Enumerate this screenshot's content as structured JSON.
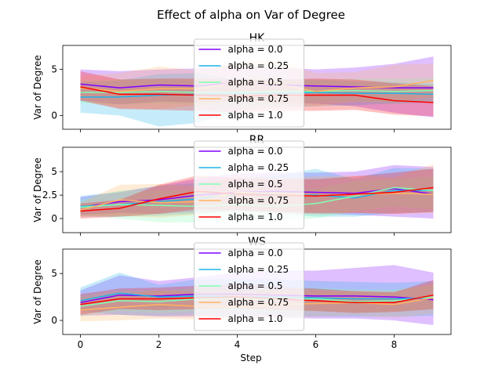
{
  "suptitle": "Effect of alpha on  Var of Degree",
  "shared_xlabel": "Step",
  "colors": {
    "alpha = 0.0": "#8000ff",
    "alpha = 0.25": "#1cb3e8",
    "alpha = 0.5": "#80ffb4",
    "alpha = 0.75": "#ffb360",
    "alpha = 1.0": "#ff0000"
  },
  "chart_data": [
    {
      "type": "line",
      "title": "HK",
      "ylabel": "Var of Degree",
      "xlabel": "",
      "xlim": [
        -0.45,
        9.45
      ],
      "ylim": [
        -1.5,
        7.6
      ],
      "xticks": [
        0,
        2,
        4,
        6,
        8
      ],
      "yticks": [
        0,
        5
      ],
      "show_xticklabels": false,
      "grid": false,
      "legend_position": "top-center",
      "x": [
        0,
        1,
        2,
        3,
        4,
        5,
        6,
        7,
        8,
        9
      ],
      "series": [
        {
          "name": "alpha = 0.0",
          "values": [
            3.4,
            3.0,
            3.3,
            3.2,
            3.6,
            3.3,
            3.2,
            3.1,
            3.0,
            3.0
          ],
          "lower": [
            1.6,
            1.2,
            1.5,
            1.4,
            1.6,
            1.4,
            1.3,
            1.0,
            0.3,
            -0.2
          ],
          "upper": [
            5.0,
            4.8,
            5.0,
            5.1,
            5.4,
            5.2,
            5.0,
            5.2,
            5.6,
            6.4
          ]
        },
        {
          "name": "alpha = 0.25",
          "values": [
            2.0,
            2.0,
            2.2,
            2.3,
            2.4,
            2.4,
            2.5,
            2.4,
            2.4,
            2.3
          ],
          "lower": [
            0.3,
            0.0,
            -1.2,
            -0.8,
            0.5,
            0.8,
            1.0,
            1.1,
            1.3,
            1.4
          ],
          "upper": [
            3.6,
            3.8,
            4.5,
            4.6,
            3.9,
            3.9,
            3.9,
            3.7,
            3.6,
            3.4
          ]
        },
        {
          "name": "alpha = 0.5",
          "values": [
            2.5,
            2.5,
            2.6,
            2.5,
            2.5,
            2.6,
            2.6,
            2.7,
            2.6,
            2.7
          ],
          "lower": [
            1.3,
            1.2,
            1.3,
            1.2,
            1.0,
            1.2,
            1.4,
            1.5,
            1.3,
            1.5
          ],
          "upper": [
            3.8,
            3.9,
            4.0,
            3.9,
            4.0,
            4.0,
            3.9,
            4.0,
            4.0,
            4.1
          ]
        },
        {
          "name": "alpha = 0.75",
          "values": [
            3.0,
            2.6,
            2.9,
            2.9,
            3.6,
            3.4,
            2.6,
            3.0,
            3.1,
            3.8
          ],
          "lower": [
            1.7,
            0.8,
            0.7,
            1.1,
            1.6,
            1.3,
            1.0,
            1.5,
            1.5,
            2.0
          ],
          "upper": [
            4.3,
            4.6,
            5.3,
            4.9,
            5.8,
            6.0,
            4.6,
            4.7,
            5.5,
            5.6
          ]
        },
        {
          "name": "alpha = 1.0",
          "values": [
            3.1,
            2.3,
            2.3,
            2.2,
            2.1,
            2.2,
            2.2,
            2.2,
            1.6,
            1.4
          ],
          "lower": [
            1.6,
            0.7,
            0.6,
            0.5,
            0.3,
            0.5,
            0.5,
            0.6,
            0.1,
            -0.1
          ],
          "upper": [
            4.8,
            3.9,
            4.0,
            4.0,
            3.9,
            3.9,
            4.0,
            3.9,
            3.5,
            3.2
          ]
        }
      ]
    },
    {
      "type": "line",
      "title": "RR",
      "ylabel": "Var of Degree",
      "xlabel": "",
      "xlim": [
        -0.45,
        9.45
      ],
      "ylim": [
        -1.5,
        7.6
      ],
      "xticks": [
        0,
        2,
        4,
        6,
        8
      ],
      "yticks": [
        0,
        2.5,
        5
      ],
      "show_xticklabels": false,
      "grid": false,
      "legend_position": "top-center",
      "x": [
        0,
        1,
        2,
        3,
        4,
        5,
        6,
        7,
        8,
        9
      ],
      "series": [
        {
          "name": "alpha = 0.0",
          "values": [
            1.2,
            1.8,
            2.0,
            2.5,
            2.8,
            2.9,
            2.8,
            2.7,
            3.2,
            2.6
          ],
          "lower": [
            0.4,
            0.6,
            0.5,
            0.7,
            0.8,
            0.7,
            0.5,
            0.4,
            0.2,
            0.0
          ],
          "upper": [
            2.3,
            2.8,
            3.5,
            4.3,
            4.8,
            4.9,
            4.9,
            5.0,
            5.7,
            5.5
          ]
        },
        {
          "name": "alpha = 0.25",
          "values": [
            1.3,
            1.5,
            1.8,
            2.1,
            2.6,
            2.6,
            2.5,
            2.2,
            3.0,
            3.0
          ],
          "lower": [
            0.2,
            0.2,
            0.3,
            0.5,
            0.8,
            0.6,
            0.2,
            0.2,
            0.6,
            0.7
          ],
          "upper": [
            2.4,
            2.9,
            3.5,
            3.8,
            4.3,
            4.6,
            5.3,
            4.2,
            5.4,
            5.3
          ]
        },
        {
          "name": "alpha = 0.5",
          "values": [
            1.2,
            1.5,
            1.4,
            1.3,
            1.5,
            1.3,
            1.6,
            2.4,
            3.3,
            3.0
          ],
          "lower": [
            0.4,
            0.0,
            -0.4,
            -0.4,
            -0.2,
            -0.2,
            0.0,
            0.8,
            1.3,
            1.0
          ],
          "upper": [
            2.0,
            3.0,
            3.0,
            3.0,
            3.1,
            3.0,
            3.2,
            4.0,
            4.2,
            4.5
          ]
        },
        {
          "name": "alpha = 0.75",
          "values": [
            0.9,
            2.0,
            1.7,
            1.8,
            2.8,
            2.7,
            2.4,
            2.6,
            2.7,
            2.6
          ],
          "lower": [
            0.2,
            0.3,
            0.1,
            0.4,
            0.9,
            0.6,
            0.4,
            0.6,
            0.5,
            0.6
          ],
          "upper": [
            1.7,
            3.6,
            3.7,
            3.4,
            4.7,
            4.3,
            4.5,
            4.6,
            4.4,
            5.8
          ]
        },
        {
          "name": "alpha = 1.0",
          "values": [
            0.8,
            1.1,
            2.1,
            2.9,
            2.6,
            2.5,
            2.4,
            2.6,
            2.8,
            3.3
          ],
          "lower": [
            0.0,
            0.2,
            0.5,
            1.0,
            0.9,
            0.7,
            0.6,
            0.6,
            0.5,
            0.7
          ],
          "upper": [
            1.6,
            2.0,
            3.6,
            4.6,
            4.3,
            4.2,
            4.2,
            4.5,
            4.9,
            5.3
          ]
        }
      ]
    },
    {
      "type": "line",
      "title": "WS",
      "ylabel": "Var of Degree",
      "xlabel": "Step",
      "xlim": [
        -0.45,
        9.45
      ],
      "ylim": [
        -1.5,
        7.6
      ],
      "xticks": [
        0,
        2,
        4,
        6,
        8
      ],
      "yticks": [
        0,
        5
      ],
      "show_xticklabels": true,
      "grid": false,
      "legend_position": "top-center",
      "x": [
        0,
        1,
        2,
        3,
        4,
        5,
        6,
        7,
        8,
        9
      ],
      "series": [
        {
          "name": "alpha = 0.0",
          "values": [
            1.9,
            2.7,
            2.6,
            2.8,
            2.8,
            2.7,
            2.6,
            2.6,
            2.5,
            2.2
          ],
          "lower": [
            0.5,
            0.6,
            0.4,
            0.4,
            0.3,
            0.3,
            0.2,
            0.2,
            0.0,
            -0.5
          ],
          "upper": [
            3.2,
            4.8,
            4.2,
            4.6,
            5.1,
            5.3,
            5.3,
            5.6,
            5.9,
            5.1
          ]
        },
        {
          "name": "alpha = 0.25",
          "values": [
            2.1,
            2.9,
            2.5,
            2.6,
            2.5,
            2.5,
            2.4,
            2.3,
            2.3,
            2.4
          ],
          "lower": [
            1.0,
            0.6,
            0.5,
            0.6,
            0.5,
            0.5,
            0.4,
            0.4,
            0.4,
            0.5
          ],
          "upper": [
            3.5,
            5.1,
            3.8,
            4.4,
            4.4,
            4.4,
            4.2,
            4.1,
            4.0,
            4.2
          ]
        },
        {
          "name": "alpha = 0.5",
          "values": [
            1.5,
            2.1,
            2.0,
            2.3,
            2.4,
            2.2,
            2.3,
            2.0,
            2.1,
            2.5
          ],
          "lower": [
            0.4,
            1.0,
            0.8,
            1.0,
            1.1,
            0.9,
            1.0,
            0.8,
            0.9,
            1.2
          ],
          "upper": [
            2.6,
            3.2,
            3.2,
            3.5,
            3.7,
            3.5,
            3.5,
            3.3,
            3.3,
            3.8
          ]
        },
        {
          "name": "alpha = 0.75",
          "values": [
            1.1,
            1.4,
            1.7,
            1.5,
            1.4,
            1.7,
            1.8,
            1.9,
            1.7,
            2.4
          ],
          "lower": [
            -0.1,
            0.0,
            0.2,
            0.1,
            0.1,
            0.3,
            0.4,
            0.5,
            0.3,
            0.7
          ],
          "upper": [
            2.3,
            2.8,
            3.2,
            3.0,
            2.9,
            3.2,
            3.2,
            3.2,
            3.1,
            4.0
          ]
        },
        {
          "name": "alpha = 1.0",
          "values": [
            1.7,
            2.3,
            2.3,
            2.4,
            2.5,
            2.3,
            2.1,
            1.9,
            1.9,
            2.7
          ],
          "lower": [
            0.6,
            1.2,
            1.1,
            1.2,
            1.3,
            1.1,
            1.0,
            0.8,
            0.9,
            1.2
          ],
          "upper": [
            2.8,
            3.4,
            3.5,
            3.7,
            3.8,
            3.6,
            3.4,
            3.1,
            3.0,
            4.3
          ]
        }
      ]
    }
  ]
}
